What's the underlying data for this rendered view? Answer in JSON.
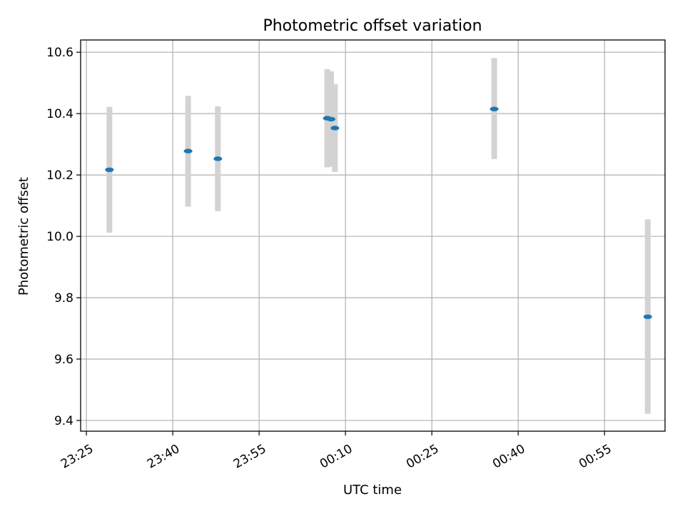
{
  "chart_data": {
    "type": "scatter",
    "title": "Photometric offset variation",
    "xlabel": "UTC time",
    "ylabel": "Photometric offset",
    "x_axis_type": "time",
    "xlim": [
      "23:24:00",
      "01:05:30"
    ],
    "ylim": [
      9.365,
      10.64
    ],
    "grid": true,
    "x_ticks": [
      {
        "value": "23:25:00",
        "label": "23:25"
      },
      {
        "value": "23:40:00",
        "label": "23:40"
      },
      {
        "value": "23:55:00",
        "label": "23:55"
      },
      {
        "value": "00:10:00",
        "label": "00:10"
      },
      {
        "value": "00:25:00",
        "label": "00:25"
      },
      {
        "value": "00:40:00",
        "label": "00:40"
      },
      {
        "value": "00:55:00",
        "label": "00:55"
      }
    ],
    "y_ticks": [
      {
        "value": 9.4,
        "label": "9.4"
      },
      {
        "value": 9.6,
        "label": "9.6"
      },
      {
        "value": 9.8,
        "label": "9.8"
      },
      {
        "value": 10.0,
        "label": "10.0"
      },
      {
        "value": 10.2,
        "label": "10.2"
      },
      {
        "value": 10.4,
        "label": "10.4"
      },
      {
        "value": 10.6,
        "label": "10.6"
      }
    ],
    "points": [
      {
        "x": "23:29:00",
        "y": 10.217,
        "yerr_low": 10.012,
        "yerr_high": 10.422
      },
      {
        "x": "23:42:40",
        "y": 10.278,
        "yerr_low": 10.097,
        "yerr_high": 10.458
      },
      {
        "x": "23:47:50",
        "y": 10.253,
        "yerr_low": 10.082,
        "yerr_high": 10.424
      },
      {
        "x": "00:06:50",
        "y": 10.385,
        "yerr_low": 10.225,
        "yerr_high": 10.545
      },
      {
        "x": "00:07:30",
        "y": 10.382,
        "yerr_low": 10.227,
        "yerr_high": 10.538
      },
      {
        "x": "00:08:10",
        "y": 10.353,
        "yerr_low": 10.21,
        "yerr_high": 10.496
      },
      {
        "x": "00:35:50",
        "y": 10.415,
        "yerr_low": 10.252,
        "yerr_high": 10.581
      },
      {
        "x": "01:02:30",
        "y": 9.738,
        "yerr_low": 9.422,
        "yerr_high": 10.055
      }
    ],
    "colors": {
      "point": "#1f77b4",
      "errorbar": "#d3d3d3",
      "grid": "#b0b0b0"
    }
  }
}
